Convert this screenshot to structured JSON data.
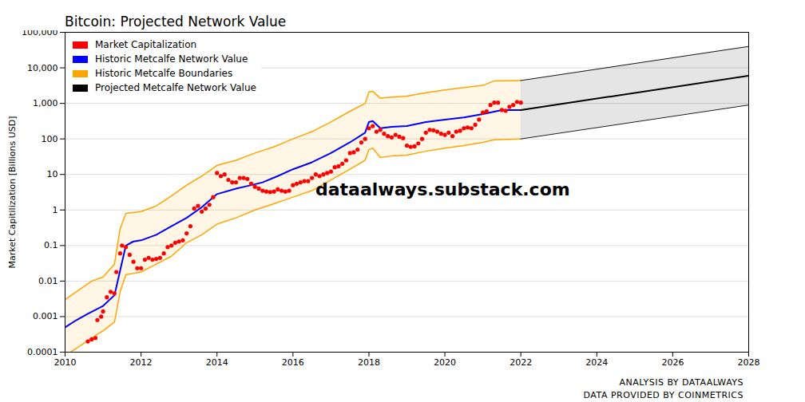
{
  "chart_data": {
    "type": "line",
    "title": "Bitcoin: Projected Network Value",
    "x_label": null,
    "y_label": "Market Capitilization [Billions USD]",
    "annotations": [
      "dataalways.substack.com",
      "ANALYSIS BY DATAALWAYS",
      "DATA PROVIDED BY COINMETRICS"
    ],
    "log": "y",
    "grid": "y",
    "legend": "top-left",
    "xlim": [
      2010,
      2028
    ],
    "xticks": [
      2010,
      2012,
      2014,
      2016,
      2018,
      2020,
      2022,
      2024,
      2026,
      2028
    ],
    "ylim": [
      0.0001,
      100000
    ],
    "yticks": [
      0.0001,
      0.001,
      0.01,
      0.1,
      1,
      10,
      100,
      {
        "value": 1000,
        "label": "1,000"
      },
      {
        "value": 10000,
        "label": "10,000"
      },
      {
        "value": 100000,
        "label": "100,000"
      }
    ],
    "series": [
      {
        "name": "Market Capitalization",
        "color": "#ff0000",
        "type": "scatter",
        "marker": "circle",
        "x": [
          2010.6,
          2010.7,
          2010.8,
          2010.85,
          2010.95,
          2011.0,
          2011.1,
          2011.2,
          2011.3,
          2011.35,
          2011.45,
          2011.5,
          2011.6,
          2011.7,
          2011.8,
          2011.9,
          2012.0,
          2012.1,
          2012.2,
          2012.3,
          2012.4,
          2012.5,
          2012.6,
          2012.7,
          2012.8,
          2012.9,
          2013.0,
          2013.1,
          2013.2,
          2013.3,
          2013.4,
          2013.5,
          2013.6,
          2013.7,
          2013.8,
          2013.9,
          2014.0,
          2014.1,
          2014.2,
          2014.3,
          2014.4,
          2014.5,
          2014.6,
          2014.7,
          2014.8,
          2014.9,
          2015.0,
          2015.1,
          2015.2,
          2015.3,
          2015.4,
          2015.5,
          2015.6,
          2015.7,
          2015.8,
          2015.9,
          2016.0,
          2016.1,
          2016.2,
          2016.3,
          2016.4,
          2016.5,
          2016.6,
          2016.7,
          2016.8,
          2016.9,
          2017.0,
          2017.1,
          2017.2,
          2017.3,
          2017.4,
          2017.5,
          2017.6,
          2017.7,
          2017.8,
          2017.9,
          2018.0,
          2018.1,
          2018.2,
          2018.3,
          2018.4,
          2018.5,
          2018.6,
          2018.7,
          2018.8,
          2018.9,
          2019.0,
          2019.1,
          2019.2,
          2019.3,
          2019.4,
          2019.5,
          2019.6,
          2019.7,
          2019.8,
          2019.9,
          2020.0,
          2020.1,
          2020.2,
          2020.3,
          2020.4,
          2020.5,
          2020.6,
          2020.7,
          2020.8,
          2020.9,
          2021.0,
          2021.1,
          2021.2,
          2021.3,
          2021.4,
          2021.5,
          2021.6,
          2021.7,
          2021.8,
          2021.9,
          2022.0
        ],
        "values": [
          0.0002,
          0.00023,
          0.00025,
          0.0008,
          0.001,
          0.0014,
          0.0035,
          0.005,
          0.0045,
          0.018,
          0.06,
          0.1,
          0.09,
          0.055,
          0.035,
          0.023,
          0.023,
          0.04,
          0.045,
          0.04,
          0.042,
          0.045,
          0.06,
          0.09,
          0.1,
          0.12,
          0.13,
          0.14,
          0.22,
          0.35,
          1.1,
          1.3,
          0.9,
          1.1,
          1.4,
          2.3,
          11,
          9,
          10,
          7,
          6,
          6,
          8,
          8,
          7.5,
          5.5,
          4.5,
          4,
          3.5,
          3.3,
          3.2,
          3.3,
          3.8,
          3.5,
          3.3,
          3.5,
          5,
          5.5,
          6,
          6.5,
          6.5,
          8,
          10,
          9,
          10,
          11,
          12,
          16,
          17,
          20,
          25,
          40,
          42,
          50,
          80,
          100,
          200,
          230,
          160,
          180,
          140,
          120,
          110,
          130,
          115,
          105,
          65,
          60,
          62,
          75,
          100,
          150,
          180,
          175,
          160,
          140,
          130,
          150,
          120,
          160,
          170,
          200,
          210,
          200,
          250,
          350,
          550,
          600,
          900,
          1050,
          1050,
          650,
          620,
          800,
          900,
          1100,
          1050
        ]
      },
      {
        "name": "Historic Metcalfe Network Value",
        "color": "#0000ff",
        "type": "line",
        "line_style": "solid",
        "x": [
          2010,
          2010.3,
          2010.6,
          2011,
          2011.3,
          2011.45,
          2011.6,
          2011.8,
          2012,
          2012.4,
          2012.8,
          2013.2,
          2013.6,
          2014,
          2014.5,
          2014.9,
          2015.2,
          2015.6,
          2016,
          2016.5,
          2017,
          2017.5,
          2017.9,
          2018,
          2018.1,
          2018.3,
          2018.6,
          2019,
          2019.5,
          2020,
          2020.5,
          2021,
          2021.5,
          2022
        ],
        "values": [
          0.0005,
          0.0008,
          0.0012,
          0.002,
          0.004,
          0.02,
          0.1,
          0.13,
          0.14,
          0.2,
          0.35,
          0.6,
          1.2,
          2.8,
          4,
          5,
          6,
          9,
          14,
          22,
          40,
          80,
          150,
          300,
          320,
          200,
          220,
          230,
          300,
          350,
          400,
          500,
          650,
          650
        ]
      },
      {
        "name": "Historic Metcalfe Boundaries",
        "color": "#ffa500",
        "type": "band",
        "line_style": "solid",
        "x": [
          2010,
          2010.4,
          2010.7,
          2011,
          2011.3,
          2011.45,
          2011.6,
          2012,
          2012.4,
          2012.8,
          2013.2,
          2013.6,
          2014,
          2014.5,
          2015,
          2015.5,
          2016,
          2016.5,
          2017,
          2017.5,
          2017.9,
          2018,
          2018.1,
          2018.3,
          2018.6,
          2019,
          2019.5,
          2020,
          2020.5,
          2021,
          2021.3,
          2022
        ],
        "lower": [
          8e-05,
          0.00015,
          0.00025,
          0.0004,
          0.0007,
          0.005,
          0.015,
          0.018,
          0.03,
          0.05,
          0.12,
          0.2,
          0.4,
          0.6,
          1,
          1.5,
          2.3,
          3.5,
          7,
          14,
          25,
          50,
          55,
          30,
          33,
          35,
          45,
          55,
          65,
          80,
          95,
          100
        ],
        "upper": [
          0.003,
          0.006,
          0.01,
          0.013,
          0.03,
          0.3,
          0.8,
          0.9,
          1.3,
          2.5,
          5,
          9,
          18,
          25,
          40,
          60,
          100,
          160,
          300,
          600,
          1000,
          2100,
          2200,
          1400,
          1500,
          1600,
          2000,
          2400,
          2800,
          3200,
          4300,
          4400
        ]
      },
      {
        "name": "Projected Metcalfe Network Value",
        "color": "#000000",
        "type": "line",
        "line_style": "solid",
        "x": [
          2022,
          2028
        ],
        "values": [
          650,
          6000
        ],
        "lower": [
          100,
          900
        ],
        "upper": [
          4400,
          40000
        ]
      }
    ]
  }
}
